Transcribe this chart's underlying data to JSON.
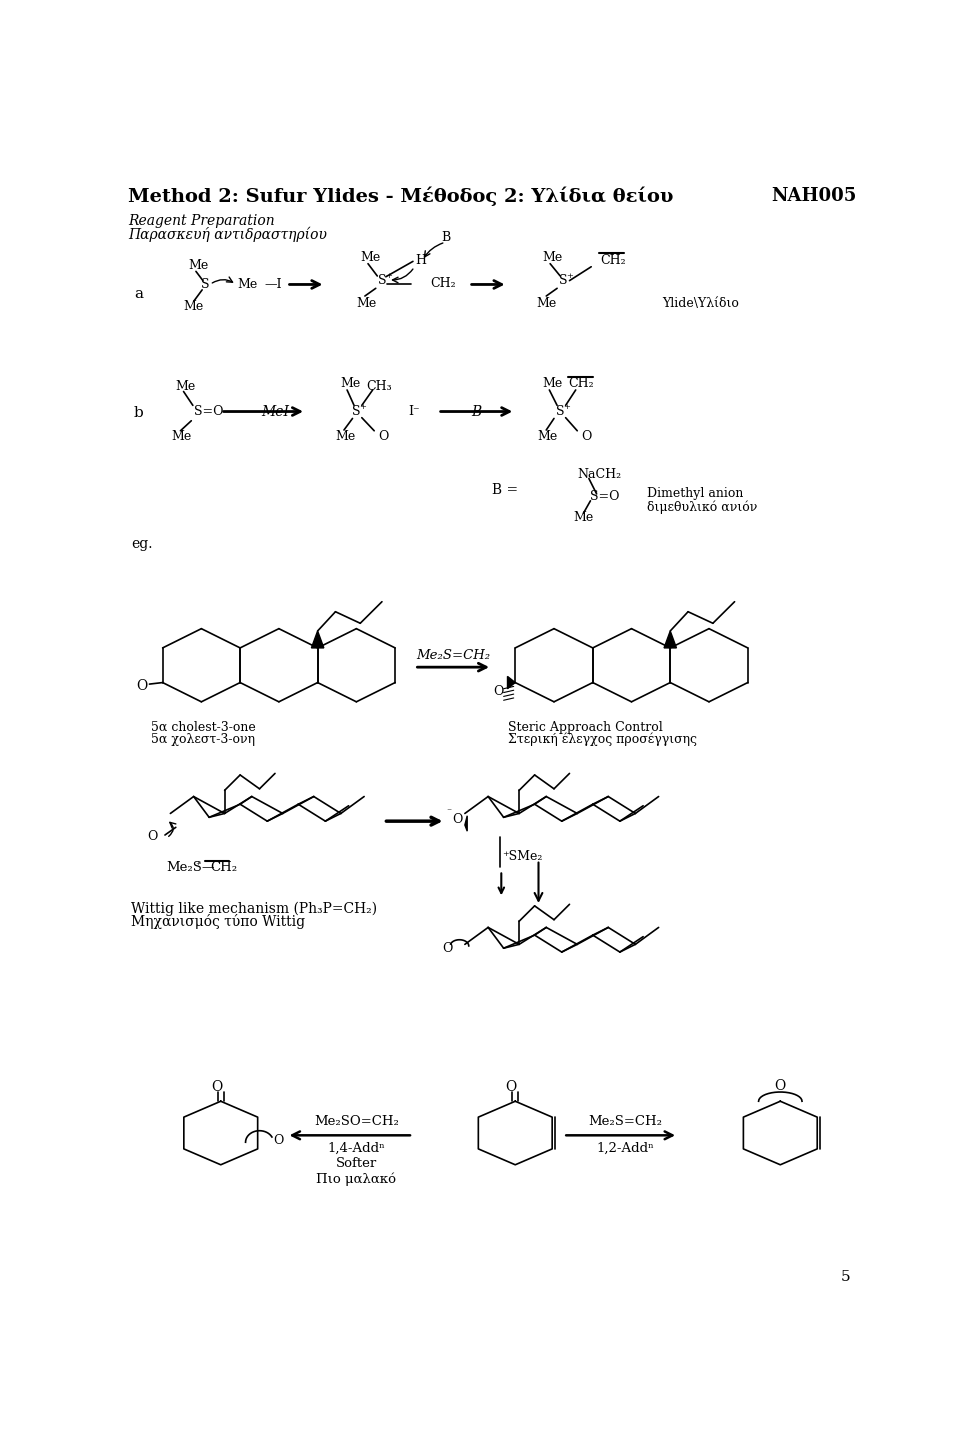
{
  "title": "Method 2: Sufur Ylides - Μέθοδος 2: Υλίδια θείου",
  "code": "NAH005",
  "page": "5",
  "reagent_en": "Reagent Preparation",
  "reagent_gr": "Παρασκευή αντιδραστηρίου",
  "ylide_label": "Ylide\\Yλίδιο",
  "dimethyl_en": "Dimethyl anion",
  "dimethyl_gr": "διμεθυλικό ανιόν",
  "cholest_en": "5α cholest-3-one",
  "cholest_gr": "5α χολεστ-3-ονη",
  "steric_en": "Steric Approach Control",
  "steric_gr": "Στερική έλεγχος προσέγγισης",
  "wittig_en": "Wittig like mechanism (Ph₃P=CH₂)",
  "wittig_gr": "Mηχανισμός τύπο Wittig",
  "add14_label": "Me₂SO=CH₂",
  "add14_type": "1,4-Addⁿ",
  "add14_softer": "Softer",
  "add14_gr": "Πιο μαλακό",
  "add12_label": "Me₂S=CH₂",
  "add12_type": "1,2-Addⁿ"
}
